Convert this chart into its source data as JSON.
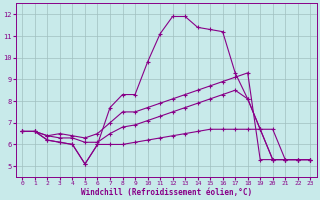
{
  "xlabel": "Windchill (Refroidissement éolien,°C)",
  "background_color": "#c8eaea",
  "grid_color": "#b0c8c8",
  "line_color": "#880088",
  "xlim": [
    -0.5,
    23.5
  ],
  "ylim": [
    4.5,
    12.5
  ],
  "xticks": [
    0,
    1,
    2,
    3,
    4,
    5,
    6,
    7,
    8,
    9,
    10,
    11,
    12,
    13,
    14,
    15,
    16,
    17,
    18,
    19,
    20,
    21,
    22,
    23
  ],
  "yticks": [
    5,
    6,
    7,
    8,
    9,
    10,
    11,
    12
  ],
  "line1_x": [
    0,
    1,
    2,
    3,
    4,
    5,
    6,
    7,
    8,
    9,
    10,
    11,
    12,
    13,
    14,
    15,
    16,
    17,
    18,
    19,
    20,
    21,
    22,
    23
  ],
  "line1_y": [
    6.6,
    6.6,
    6.2,
    6.1,
    6.0,
    5.1,
    6.0,
    7.7,
    8.3,
    8.3,
    9.8,
    11.1,
    11.9,
    11.9,
    11.4,
    11.3,
    11.2,
    9.3,
    8.1,
    6.7,
    5.3,
    5.3,
    5.3,
    5.3
  ],
  "line2_x": [
    0,
    1,
    2,
    3,
    4,
    5,
    6,
    7,
    8,
    9,
    10,
    11,
    12,
    13,
    14,
    15,
    16,
    17,
    18,
    19,
    20,
    21,
    22,
    23
  ],
  "line2_y": [
    6.6,
    6.6,
    6.4,
    6.5,
    6.4,
    6.3,
    6.5,
    7.0,
    7.5,
    7.5,
    7.7,
    7.9,
    8.1,
    8.3,
    8.5,
    8.7,
    8.9,
    9.1,
    9.3,
    5.3,
    5.3,
    5.3,
    5.3,
    5.3
  ],
  "line3_x": [
    0,
    1,
    2,
    3,
    4,
    5,
    6,
    7,
    8,
    9,
    10,
    11,
    12,
    13,
    14,
    15,
    16,
    17,
    18,
    19,
    20,
    21,
    22,
    23
  ],
  "line3_y": [
    6.6,
    6.6,
    6.4,
    6.3,
    6.3,
    6.1,
    6.1,
    6.5,
    6.8,
    6.9,
    7.1,
    7.3,
    7.5,
    7.7,
    7.9,
    8.1,
    8.3,
    8.5,
    8.1,
    6.7,
    5.3,
    5.3,
    5.3,
    5.3
  ],
  "line4_x": [
    0,
    1,
    2,
    3,
    4,
    5,
    6,
    7,
    8,
    9,
    10,
    11,
    12,
    13,
    14,
    15,
    16,
    17,
    18,
    19,
    20,
    21,
    22,
    23
  ],
  "line4_y": [
    6.6,
    6.6,
    6.2,
    6.1,
    6.0,
    5.1,
    6.0,
    6.0,
    6.0,
    6.1,
    6.2,
    6.3,
    6.4,
    6.5,
    6.6,
    6.7,
    6.7,
    6.7,
    6.7,
    6.7,
    6.7,
    5.3,
    5.3,
    5.3
  ]
}
